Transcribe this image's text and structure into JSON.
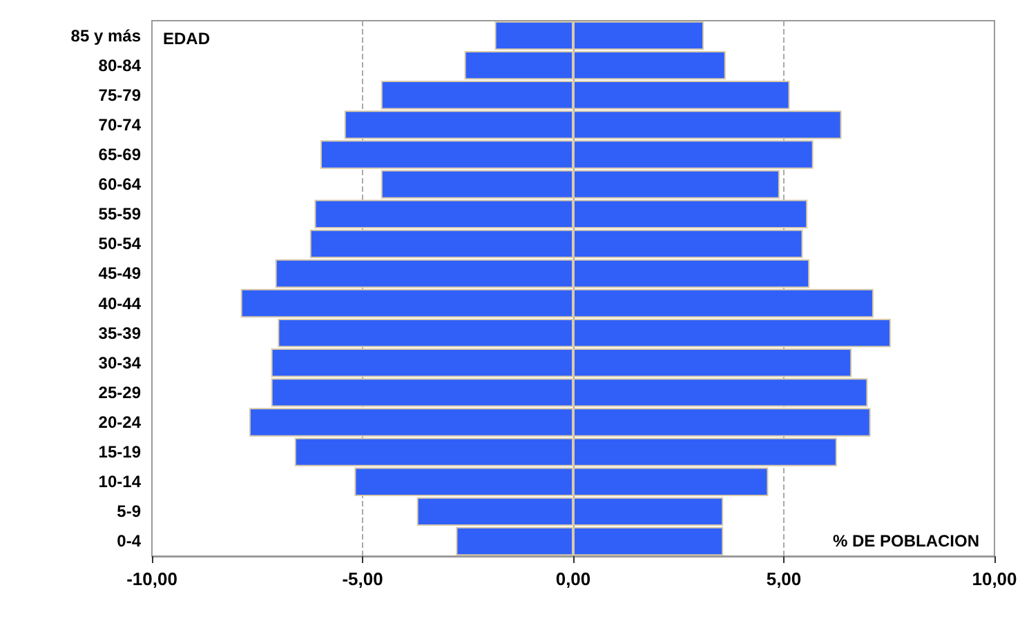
{
  "chart_data": {
    "type": "bar",
    "orientation": "horizontal",
    "stacked": true,
    "categories": [
      "85 y más",
      "80-84",
      "75-79",
      "70-74",
      "65-69",
      "60-64",
      "55-59",
      "50-54",
      "45-49",
      "40-44",
      "35-39",
      "30-34",
      "25-29",
      "20-24",
      "15-19",
      "10-14",
      "5-9",
      "0-4"
    ],
    "series": [
      {
        "color": "#3060f8",
        "values": [
          -1.86,
          -2.58,
          -4.56,
          -5.43,
          -6.0,
          -4.56,
          -6.14,
          -6.25,
          -7.07,
          -7.89,
          -7.01,
          -7.17,
          -7.17,
          -7.69,
          -6.61,
          -5.19,
          -3.71,
          -2.78
        ]
      },
      {
        "color": "#3060f8",
        "values": [
          3.1,
          3.62,
          5.14,
          6.37,
          5.7,
          4.9,
          5.56,
          5.45,
          5.61,
          7.13,
          7.54,
          6.61,
          6.99,
          7.06,
          6.26,
          4.63,
          3.56,
          3.56
        ]
      }
    ],
    "xlim": [
      -10,
      10
    ],
    "xticks": [
      {
        "value": -10,
        "label": "-10,00"
      },
      {
        "value": -5,
        "label": "-5,00"
      },
      {
        "value": 0,
        "label": "0,00"
      },
      {
        "value": 5,
        "label": "5,00"
      },
      {
        "value": 10,
        "label": "10,00"
      }
    ],
    "grid": "x",
    "annotations": [
      "EDAD",
      "% DE POBLACION"
    ]
  }
}
